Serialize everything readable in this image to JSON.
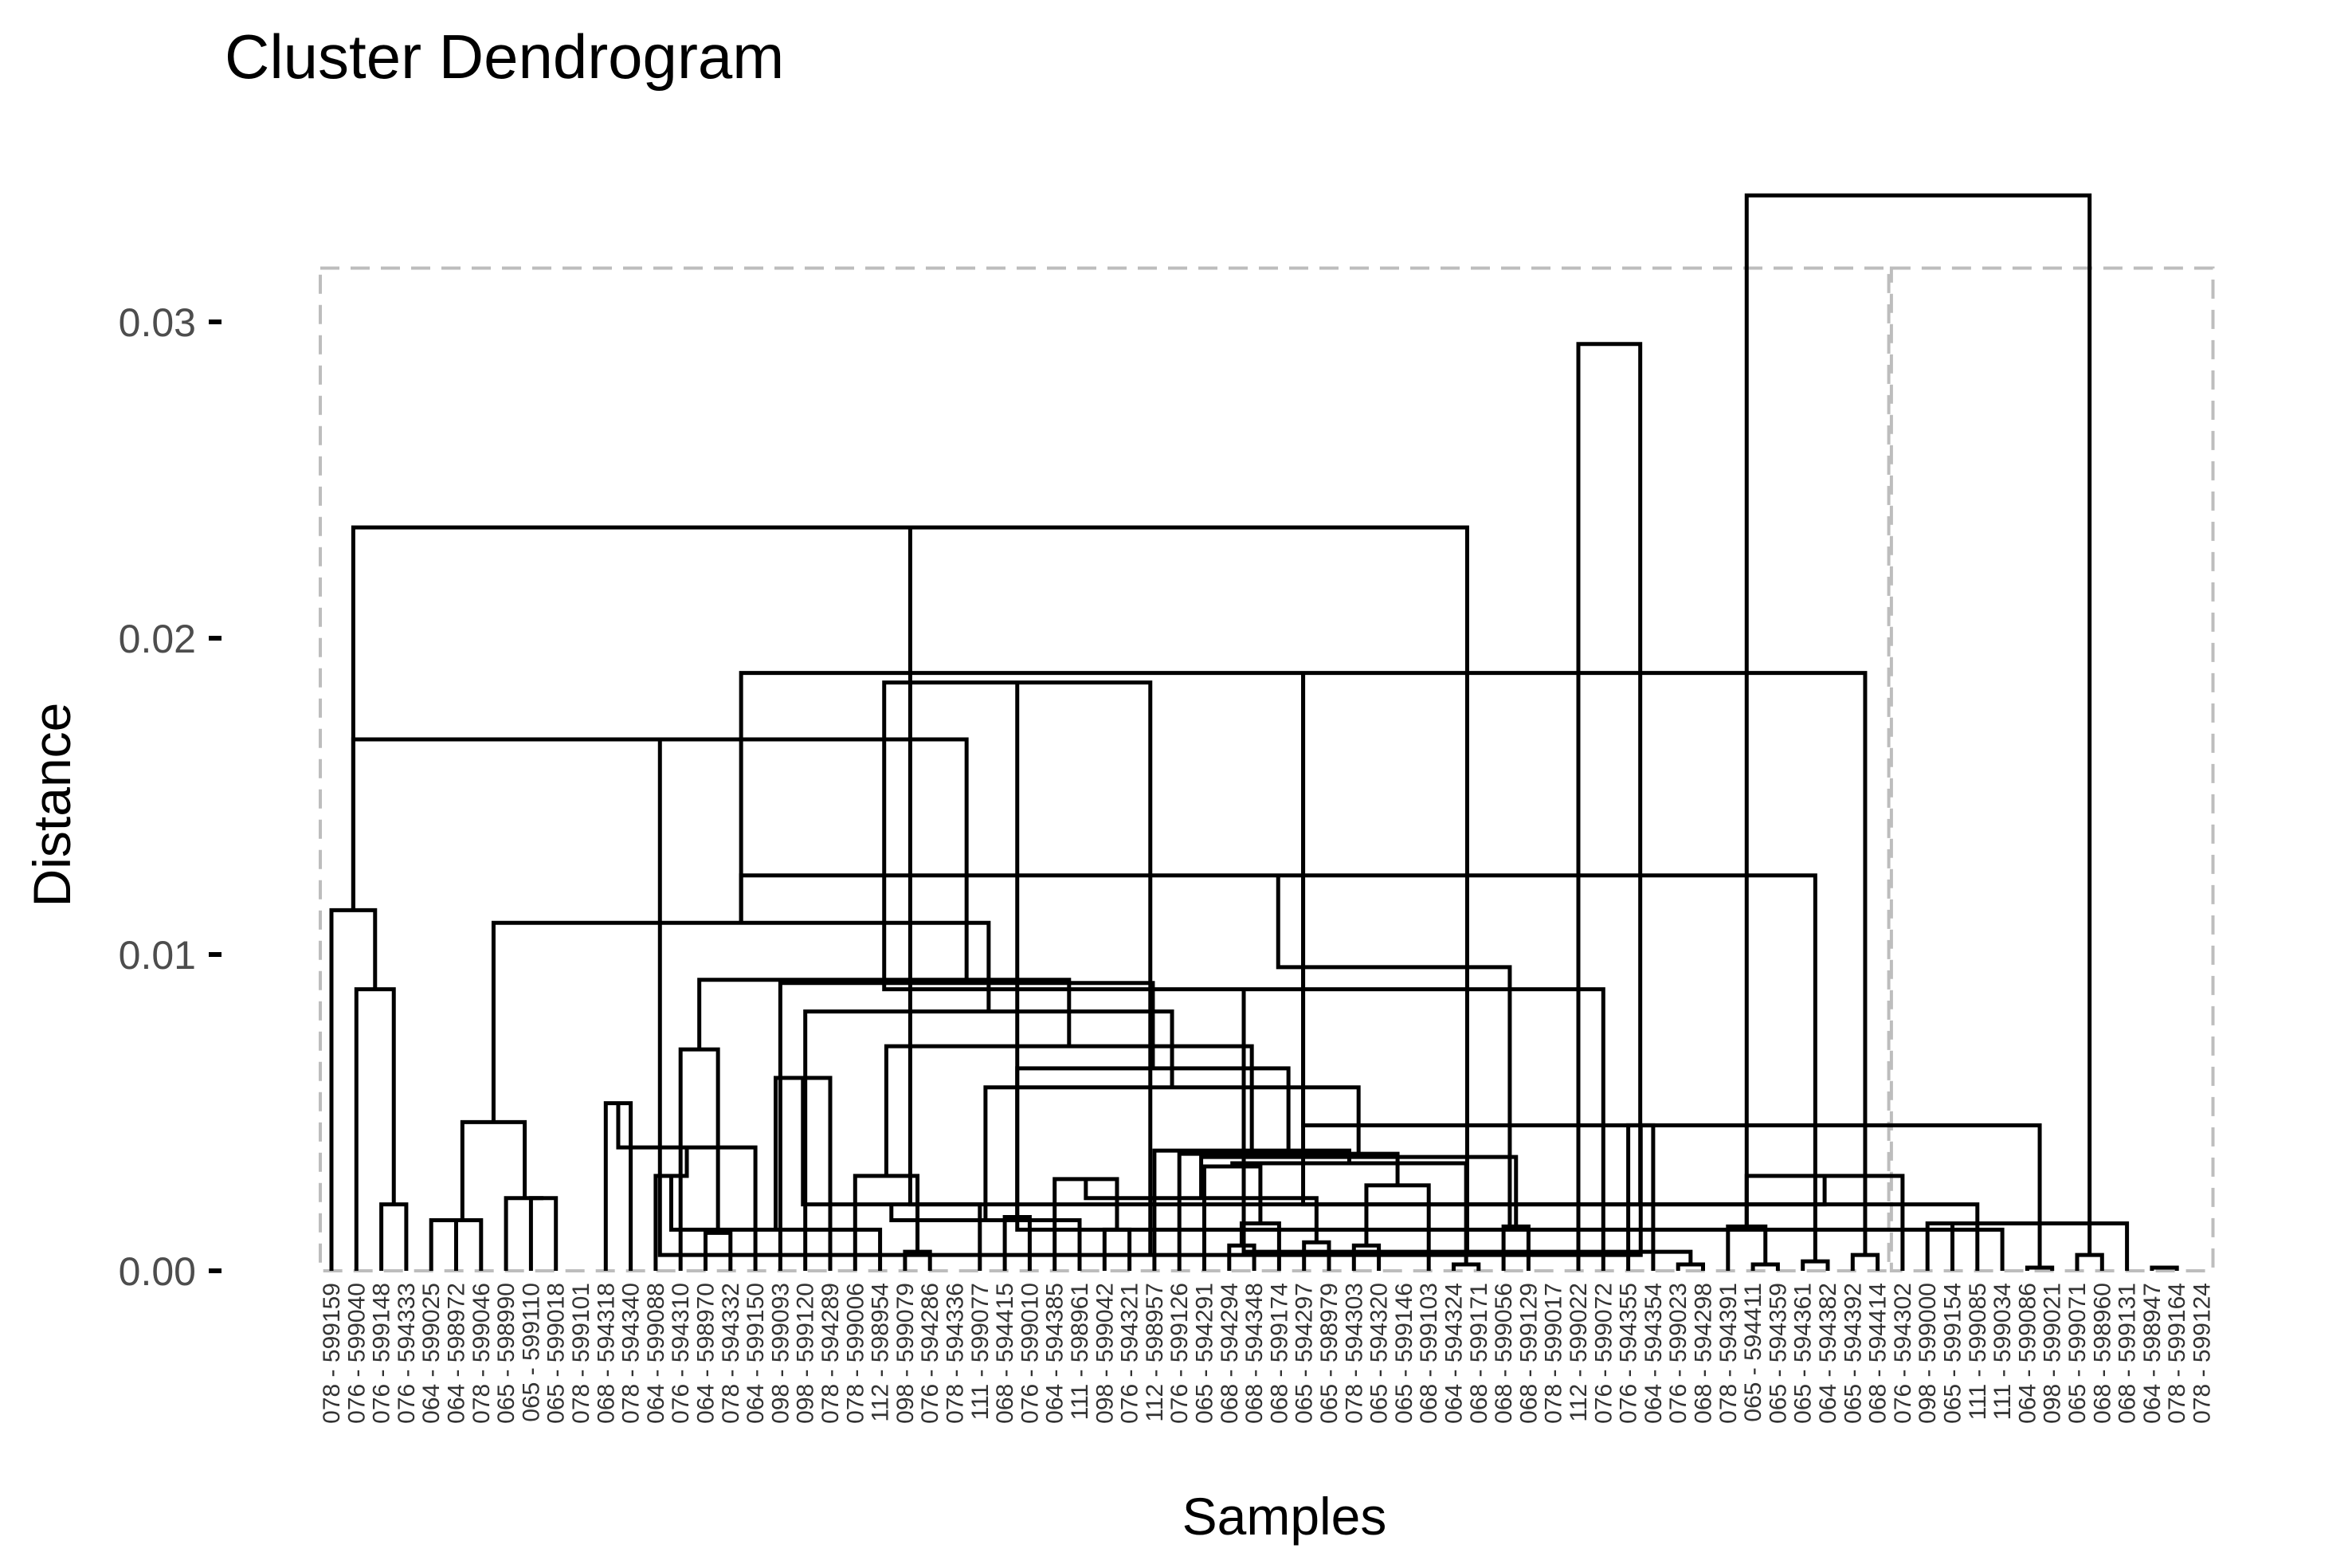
{
  "chart_data": {
    "type": "dendrogram",
    "title": "Cluster Dendrogram",
    "xlabel": "Samples",
    "ylabel": "Distance",
    "ylim": [
      0,
      0.034
    ],
    "yticks": [
      0.0,
      0.01,
      0.02,
      0.03
    ],
    "ytick_labels": [
      "0.00",
      "0.01",
      "0.02",
      "0.03"
    ],
    "leaves": [
      "078 - 599159",
      "076 - 599040",
      "076 - 599148",
      "076 - 594333",
      "064 - 599025",
      "064 - 598972",
      "078 - 599046",
      "065 - 598990",
      "065 - 599110",
      "065 - 599018",
      "078 - 599101",
      "068 - 594318",
      "078 - 594340",
      "064 - 599088",
      "076 - 594310",
      "064 - 598970",
      "078 - 594332",
      "064 - 599150",
      "098 - 599093",
      "098 - 599120",
      "078 - 594289",
      "078 - 599006",
      "112 - 598954",
      "098 - 599079",
      "076 - 594286",
      "078 - 594336",
      "111 - 599077",
      "068 - 594415",
      "076 - 599010",
      "064 - 594385",
      "111 - 598961",
      "098 - 599042",
      "076 - 594321",
      "112 - 598957",
      "076 - 599126",
      "065 - 594291",
      "068 - 594294",
      "068 - 594348",
      "068 - 599174",
      "065 - 594297",
      "065 - 598979",
      "078 - 594303",
      "065 - 594320",
      "065 - 599146",
      "068 - 599103",
      "064 - 594324",
      "068 - 599171",
      "068 - 599056",
      "068 - 599129",
      "078 - 599017",
      "112 - 599022",
      "076 - 599072",
      "076 - 594355",
      "064 - 594354",
      "076 - 599023",
      "068 - 594298",
      "078 - 594391",
      "065 - 594411",
      "065 - 594359",
      "065 - 594361",
      "064 - 594382",
      "065 - 594392",
      "068 - 594414",
      "076 - 594302",
      "098 - 599000",
      "065 - 599154",
      "111 - 599085",
      "111 - 599034",
      "064 - 599086",
      "098 - 599021",
      "065 - 599071",
      "068 - 598960",
      "068 - 599131",
      "064 - 598947",
      "078 - 599164",
      "078 - 599124"
    ],
    "merges": [
      [
        2,
        3,
        0.0021
      ],
      [
        1,
        76,
        0.0089
      ],
      [
        0,
        77,
        0.0114
      ],
      [
        4,
        5,
        0.0016
      ],
      [
        6,
        79,
        0.0016
      ],
      [
        8,
        9,
        0.0023
      ],
      [
        7,
        81,
        0.0023
      ],
      [
        80,
        82,
        0.0047
      ],
      [
        11,
        12,
        0.0053
      ],
      [
        15,
        16,
        0.0012
      ],
      [
        84,
        17,
        0.0039
      ],
      [
        14,
        85,
        0.007
      ],
      [
        13,
        86,
        0.003
      ],
      [
        23,
        24,
        0.0006
      ],
      [
        22,
        88,
        0.0013
      ],
      [
        21,
        89,
        0.003
      ],
      [
        20,
        90,
        0.0061
      ],
      [
        27,
        28,
        0.0017
      ],
      [
        26,
        92,
        0.0021
      ],
      [
        31,
        32,
        0.0013
      ],
      [
        30,
        94,
        0.0016
      ],
      [
        29,
        95,
        0.0029
      ],
      [
        36,
        37,
        0.0008
      ],
      [
        39,
        40,
        0.0009
      ],
      [
        38,
        98,
        0.0015
      ],
      [
        97,
        99,
        0.0023
      ],
      [
        35,
        100,
        0.0033
      ],
      [
        41,
        42,
        0.0008
      ],
      [
        45,
        46,
        0.0002
      ],
      [
        47,
        48,
        0.0014
      ],
      [
        44,
        103,
        0.0027
      ],
      [
        102,
        104,
        0.0034
      ],
      [
        101,
        105,
        0.0036
      ],
      [
        34,
        106,
        0.0037
      ],
      [
        33,
        107,
        0.0038
      ],
      [
        96,
        108,
        0.0058
      ],
      [
        93,
        109,
        0.0064
      ],
      [
        91,
        110,
        0.0071
      ],
      [
        19,
        111,
        0.0082
      ],
      [
        18,
        112,
        0.0091
      ],
      [
        87,
        113,
        0.0092
      ],
      [
        83,
        114,
        0.011
      ],
      [
        78,
        115,
        0.0168
      ],
      [
        52,
        53,
        0.0046
      ],
      [
        51,
        116,
        0.0089
      ],
      [
        54,
        55,
        0.0002
      ],
      [
        57,
        58,
        0.0002
      ],
      [
        59,
        60,
        0.0003
      ],
      [
        118,
        119,
        0.0005
      ],
      [
        61,
        62,
        0.0005
      ],
      [
        120,
        121,
        0.0006
      ],
      [
        56,
        122,
        0.0014
      ],
      [
        117,
        123,
        0.0125
      ],
      [
        116,
        124,
        0.0186
      ],
      [
        117,
        125,
        0.0189
      ],
      [
        78,
        126,
        0.0235
      ],
      [
        64,
        65,
        0.0015
      ],
      [
        63,
        127,
        0.003
      ],
      [
        68,
        69,
        0.0001
      ],
      [
        67,
        129,
        0.0013
      ],
      [
        66,
        130,
        0.0021
      ],
      [
        70,
        71,
        0.0005
      ],
      [
        73,
        74,
        0.0001
      ],
      [
        72,
        132,
        0.0015
      ],
      [
        131,
        133,
        0.0021
      ],
      [
        130,
        134,
        0.0046
      ],
      [
        128,
        135,
        0.0096
      ],
      [
        50,
        136,
        0.0293
      ],
      [
        127,
        137,
        0.034
      ]
    ],
    "cluster_boxes": [
      {
        "from_leaf": 0,
        "to_leaf": 62
      },
      {
        "from_leaf": 63,
        "to_leaf": 75
      }
    ],
    "box_top": 0.0317,
    "grid": false
  }
}
